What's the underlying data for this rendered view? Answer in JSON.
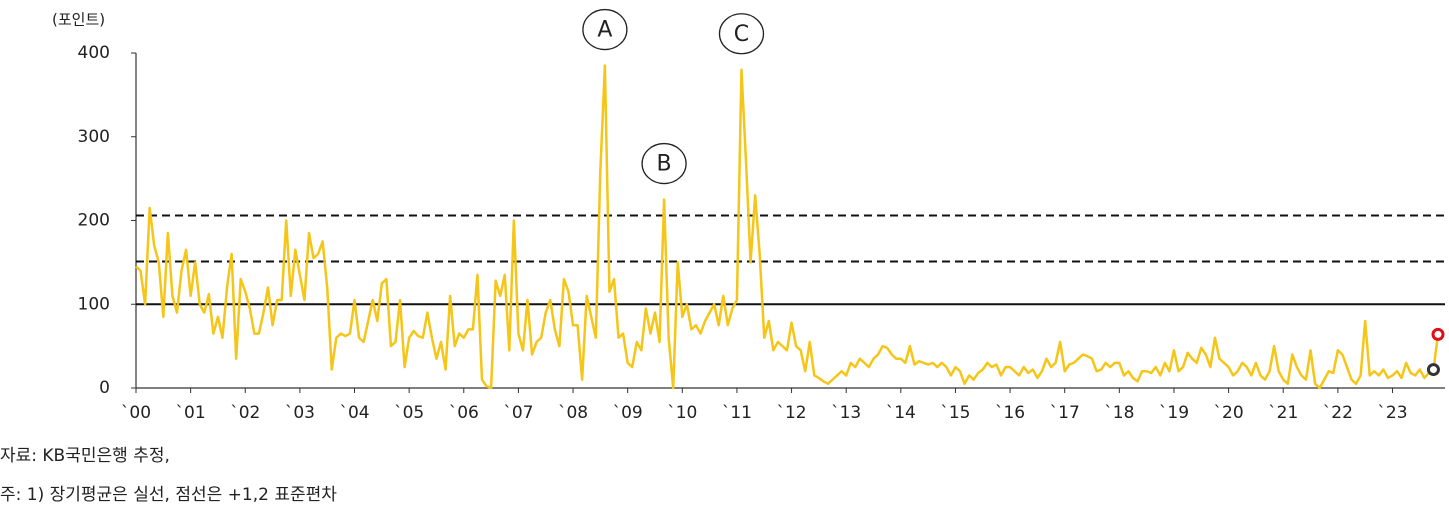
{
  "chart_data": {
    "type": "line",
    "y_unit": "(포인트)",
    "source": "자료: KB국민은행 추정,",
    "note": "주: 1) 장기평균은 실선, 점선은 +1,2 표준편차",
    "categories": [
      "`00",
      null,
      null,
      null,
      null,
      null,
      null,
      null,
      null,
      null,
      null,
      null,
      "`01",
      null,
      null,
      null,
      null,
      null,
      null,
      null,
      null,
      null,
      null,
      null,
      "`02",
      null,
      null,
      null,
      null,
      null,
      null,
      null,
      null,
      null,
      null,
      null,
      "`03",
      null,
      null,
      null,
      null,
      null,
      null,
      null,
      null,
      null,
      null,
      null,
      "`04",
      null,
      null,
      null,
      null,
      null,
      null,
      null,
      null,
      null,
      null,
      null,
      "`05",
      null,
      null,
      null,
      null,
      null,
      null,
      null,
      null,
      null,
      null,
      null,
      "`06",
      null,
      null,
      null,
      null,
      null,
      null,
      null,
      null,
      null,
      null,
      null,
      "`07",
      null,
      null,
      null,
      null,
      null,
      null,
      null,
      null,
      null,
      null,
      null,
      "`08",
      null,
      null,
      null,
      null,
      null,
      null,
      null,
      null,
      null,
      null,
      null,
      "`09",
      null,
      null,
      null,
      null,
      null,
      null,
      null,
      null,
      null,
      null,
      null,
      "`10",
      null,
      null,
      null,
      null,
      null,
      null,
      null,
      null,
      null,
      null,
      null,
      "`11",
      null,
      null,
      null,
      null,
      null,
      null,
      null,
      null,
      null,
      null,
      null,
      "`12",
      null,
      null,
      null,
      null,
      null,
      null,
      null,
      null,
      null,
      null,
      null,
      "`13",
      null,
      null,
      null,
      null,
      null,
      null,
      null,
      null,
      null,
      null,
      null,
      "`14",
      null,
      null,
      null,
      null,
      null,
      null,
      null,
      null,
      null,
      null,
      null,
      "`15",
      null,
      null,
      null,
      null,
      null,
      null,
      null,
      null,
      null,
      null,
      null,
      "`16",
      null,
      null,
      null,
      null,
      null,
      null,
      null,
      null,
      null,
      null,
      null,
      "`17",
      null,
      null,
      null,
      null,
      null,
      null,
      null,
      null,
      null,
      null,
      null,
      "`18",
      null,
      null,
      null,
      null,
      null,
      null,
      null,
      null,
      null,
      null,
      null,
      "`19",
      null,
      null,
      null,
      null,
      null,
      null,
      null,
      null,
      null,
      null,
      null,
      "`20",
      null,
      null,
      null,
      null,
      null,
      null,
      null,
      null,
      null,
      null,
      null,
      "`21",
      null,
      null,
      null,
      null,
      null,
      null,
      null,
      null,
      null,
      null,
      null,
      "`22",
      null,
      null,
      null,
      null,
      null,
      null,
      null,
      null,
      null,
      null,
      null,
      "`23",
      null,
      null,
      null,
      null,
      null,
      null,
      null,
      null,
      null,
      null
    ],
    "series": [
      {
        "color": "#f5c518",
        "values": [
          145,
          140,
          100,
          215,
          170,
          150,
          85,
          185,
          110,
          90,
          140,
          165,
          110,
          150,
          100,
          90,
          112,
          65,
          85,
          60,
          120,
          160,
          35,
          130,
          115,
          95,
          65,
          65,
          90,
          120,
          75,
          105,
          105,
          200,
          110,
          165,
          135,
          105,
          185,
          155,
          160,
          175,
          120,
          22,
          60,
          65,
          62,
          65,
          105,
          60,
          55,
          80,
          105,
          80,
          125,
          130,
          50,
          55,
          105,
          25,
          60,
          68,
          62,
          60,
          90,
          60,
          35,
          55,
          22,
          110,
          50,
          65,
          60,
          70,
          70,
          135,
          10,
          2,
          0,
          128,
          110,
          135,
          45,
          200,
          65,
          45,
          105,
          40,
          55,
          60,
          90,
          105,
          70,
          50,
          130,
          115,
          75,
          75,
          10,
          110,
          85,
          60,
          260,
          385,
          115,
          130,
          60,
          65,
          30,
          25,
          55,
          45,
          95,
          65,
          90,
          55,
          225,
          60,
          0,
          150,
          85,
          100,
          70,
          75,
          65,
          80,
          90,
          100,
          75,
          110,
          75,
          95,
          105,
          380,
          270,
          150,
          230,
          160,
          60,
          80,
          45,
          55,
          50,
          45,
          78,
          50,
          45,
          20,
          55,
          15,
          12,
          8,
          5,
          10,
          15,
          20,
          15,
          30,
          25,
          35,
          30,
          25,
          35,
          40,
          50,
          48,
          40,
          35,
          35,
          30,
          50,
          28,
          32,
          30,
          28,
          30,
          25,
          30,
          25,
          15,
          25,
          20,
          5,
          15,
          10,
          18,
          22,
          30,
          25,
          28,
          15,
          25,
          25,
          20,
          15,
          25,
          18,
          22,
          12,
          20,
          35,
          25,
          30,
          55,
          20,
          28,
          30,
          35,
          40,
          38,
          35,
          20,
          22,
          30,
          25,
          30,
          30,
          15,
          20,
          12,
          8,
          20,
          20,
          18,
          25,
          15,
          30,
          20,
          45,
          20,
          25,
          42,
          35,
          30,
          48,
          40,
          25,
          60,
          35,
          30,
          25,
          15,
          20,
          30,
          25,
          15,
          30,
          15,
          10,
          20,
          50,
          20,
          10,
          5,
          40,
          25,
          15,
          10,
          45,
          5,
          0,
          10,
          20,
          18,
          45,
          40,
          25,
          10,
          5,
          15,
          80,
          15,
          20,
          15,
          22,
          12,
          15,
          20,
          12,
          30,
          18,
          15,
          22,
          12,
          18,
          22,
          64
        ]
      }
    ],
    "highlights": [
      {
        "index": 285,
        "color": "#333333"
      },
      {
        "index": 286,
        "color": "#e0101a"
      }
    ],
    "annotations": [
      {
        "label": "A",
        "index": 103
      },
      {
        "label": "B",
        "index": 116
      },
      {
        "label": "C",
        "index": 133
      }
    ],
    "hlines": [
      {
        "value": 100,
        "style": "solid"
      },
      {
        "value": 151,
        "style": "dashed"
      },
      {
        "value": 206,
        "style": "dashed"
      }
    ],
    "ylim": [
      0,
      400
    ],
    "yticks": [
      0,
      100,
      200,
      300,
      400
    ]
  }
}
